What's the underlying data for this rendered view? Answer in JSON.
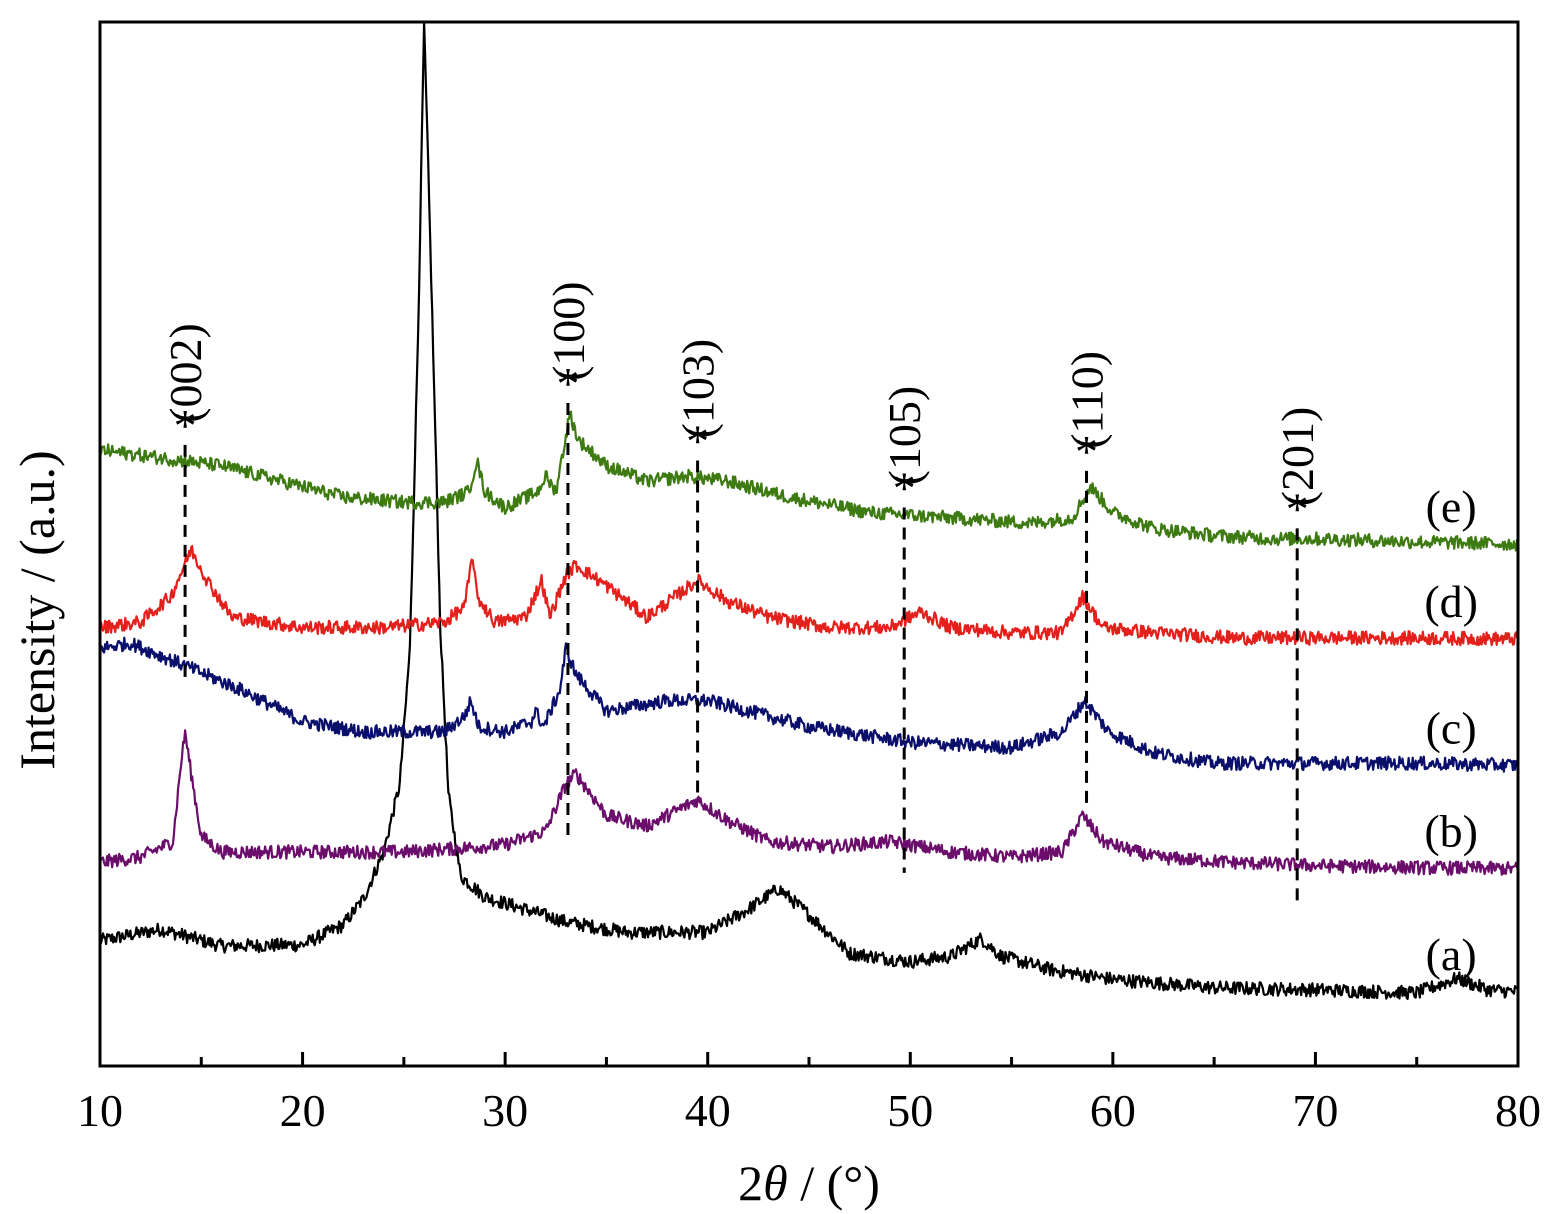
{
  "chart_data": {
    "type": "line",
    "xlabel_prefix": "2",
    "xlabel_theta": "θ",
    "xlabel_suffix": " / (°)",
    "ylabel": "Intensity / (a.u.)",
    "xlim": [
      10,
      80
    ],
    "ylim": [
      0,
      100
    ],
    "x_ticks": [
      "10",
      "20",
      "30",
      "40",
      "50",
      "60",
      "70",
      "80"
    ],
    "grid": false,
    "series": [
      {
        "name": "(a)",
        "color": "#000000",
        "points": [
          [
            10,
            12.0
          ],
          [
            13,
            13.1
          ],
          [
            16,
            11.5
          ],
          [
            20,
            11.6
          ],
          [
            22,
            13.5
          ],
          [
            23,
            16.0
          ],
          [
            24,
            20.5
          ],
          [
            24.8,
            27.0
          ],
          [
            25.3,
            40.0
          ],
          [
            25.7,
            70.0
          ],
          [
            26.0,
            100.0
          ],
          [
            26.4,
            72.0
          ],
          [
            26.8,
            42.0
          ],
          [
            27.2,
            26.0
          ],
          [
            27.8,
            18.2
          ],
          [
            29,
            16.2
          ],
          [
            31,
            15.0
          ],
          [
            33,
            13.8
          ],
          [
            36,
            12.8
          ],
          [
            40,
            12.8
          ],
          [
            42,
            15.0
          ],
          [
            43.5,
            17.0
          ],
          [
            45,
            14.5
          ],
          [
            47,
            10.8
          ],
          [
            50,
            10.0
          ],
          [
            52,
            10.5
          ],
          [
            53.5,
            12.2
          ],
          [
            54.5,
            10.5
          ],
          [
            57,
            9.2
          ],
          [
            60,
            8.3
          ],
          [
            65,
            7.5
          ],
          [
            70,
            7.3
          ],
          [
            75,
            7.0
          ],
          [
            77,
            8.4
          ],
          [
            78.5,
            7.3
          ],
          [
            80,
            7.1
          ]
        ]
      },
      {
        "name": "(b)",
        "color": "#6b0d6b",
        "points": [
          [
            10,
            19.5
          ],
          [
            12,
            20.0
          ],
          [
            13.6,
            21.5
          ],
          [
            14.0,
            29.0
          ],
          [
            14.2,
            32.0
          ],
          [
            14.5,
            28.0
          ],
          [
            15.0,
            22.0
          ],
          [
            16,
            20.5
          ],
          [
            20,
            20.5
          ],
          [
            25,
            20.5
          ],
          [
            28,
            20.9
          ],
          [
            30,
            21.2
          ],
          [
            32,
            22.5
          ],
          [
            33,
            27.0
          ],
          [
            33.5,
            28.0
          ],
          [
            35,
            24.0
          ],
          [
            37,
            23.0
          ],
          [
            39.5,
            25.5
          ],
          [
            41,
            23.5
          ],
          [
            43,
            21.5
          ],
          [
            46,
            21.0
          ],
          [
            49,
            21.5
          ],
          [
            52,
            20.5
          ],
          [
            55,
            20.0
          ],
          [
            57.5,
            20.5
          ],
          [
            58.5,
            24.0
          ],
          [
            59.5,
            21.5
          ],
          [
            62,
            20.0
          ],
          [
            66,
            19.5
          ],
          [
            70,
            19.2
          ],
          [
            75,
            19.0
          ],
          [
            80,
            18.9
          ]
        ]
      },
      {
        "name": "(c)",
        "color": "#0a0f6b",
        "points": [
          [
            10,
            40.0
          ],
          [
            11.5,
            40.5
          ],
          [
            14,
            38.5
          ],
          [
            17,
            36.0
          ],
          [
            20,
            33.0
          ],
          [
            23,
            32.0
          ],
          [
            25,
            32.0
          ],
          [
            27,
            32.0
          ],
          [
            28.0,
            33.5
          ],
          [
            28.3,
            35.0
          ],
          [
            28.7,
            32.5
          ],
          [
            30,
            32.0
          ],
          [
            31.3,
            33.0
          ],
          [
            31.5,
            34.0
          ],
          [
            31.9,
            32.5
          ],
          [
            32.7,
            36.0
          ],
          [
            33.0,
            40.0
          ],
          [
            33.5,
            37.5
          ],
          [
            35,
            34.0
          ],
          [
            38,
            35.0
          ],
          [
            40,
            35.0
          ],
          [
            42,
            34.0
          ],
          [
            45,
            32.5
          ],
          [
            50,
            31.0
          ],
          [
            55,
            30.5
          ],
          [
            57.5,
            32.0
          ],
          [
            58.6,
            35.0
          ],
          [
            59.8,
            32.0
          ],
          [
            62,
            30.0
          ],
          [
            65,
            29.0
          ],
          [
            68,
            29.0
          ],
          [
            70,
            29.0
          ],
          [
            75,
            29.0
          ],
          [
            80,
            28.8
          ]
        ]
      },
      {
        "name": "(d)",
        "color": "#e3201c",
        "points": [
          [
            10,
            42.0
          ],
          [
            12,
            42.5
          ],
          [
            13.5,
            45.0
          ],
          [
            14.5,
            49.5
          ],
          [
            15.3,
            46.5
          ],
          [
            16.5,
            43.0
          ],
          [
            20,
            42.0
          ],
          [
            24,
            42.0
          ],
          [
            27,
            42.5
          ],
          [
            28.0,
            44.0
          ],
          [
            28.4,
            49.0
          ],
          [
            28.6,
            45.0
          ],
          [
            29.5,
            42.5
          ],
          [
            31,
            43.0
          ],
          [
            31.8,
            46.5
          ],
          [
            32.2,
            43.0
          ],
          [
            33.0,
            47.0
          ],
          [
            33.5,
            48.0
          ],
          [
            35,
            46.0
          ],
          [
            37,
            43.0
          ],
          [
            39.5,
            46.5
          ],
          [
            41,
            44.5
          ],
          [
            43,
            43.0
          ],
          [
            46,
            42.0
          ],
          [
            49,
            42.0
          ],
          [
            50.5,
            43.5
          ],
          [
            52,
            42.0
          ],
          [
            55,
            41.5
          ],
          [
            57.5,
            41.5
          ],
          [
            58.5,
            45.0
          ],
          [
            59.5,
            42.0
          ],
          [
            62,
            41.5
          ],
          [
            66,
            41.0
          ],
          [
            70,
            41.0
          ],
          [
            75,
            41.0
          ],
          [
            80,
            40.9
          ]
        ]
      },
      {
        "name": "(e)",
        "color": "#3d7a12",
        "points": [
          [
            10,
            59.0
          ],
          [
            12,
            58.5
          ],
          [
            14,
            58.0
          ],
          [
            16,
            57.5
          ],
          [
            18,
            56.5
          ],
          [
            20,
            55.5
          ],
          [
            22,
            54.5
          ],
          [
            25,
            54.0
          ],
          [
            27,
            54.0
          ],
          [
            28.2,
            55.0
          ],
          [
            28.6,
            58.0
          ],
          [
            29,
            55.0
          ],
          [
            30,
            53.5
          ],
          [
            31.6,
            55.0
          ],
          [
            32.0,
            56.5
          ],
          [
            32.5,
            55.0
          ],
          [
            33.2,
            62.5
          ],
          [
            33.6,
            60.0
          ],
          [
            35,
            57.5
          ],
          [
            37,
            56.0
          ],
          [
            39,
            56.5
          ],
          [
            41,
            56.0
          ],
          [
            44,
            54.5
          ],
          [
            48,
            53.0
          ],
          [
            52,
            52.5
          ],
          [
            56,
            52.0
          ],
          [
            58,
            52.5
          ],
          [
            58.9,
            55.5
          ],
          [
            60,
            53.0
          ],
          [
            62,
            51.5
          ],
          [
            65,
            50.8
          ],
          [
            68,
            50.5
          ],
          [
            70,
            50.5
          ],
          [
            75,
            50.2
          ],
          [
            80,
            50.0
          ]
        ]
      }
    ],
    "peaks": [
      {
        "x": 14.2,
        "label": "(002)",
        "top_y": 59.5,
        "bottom_y": 37.0
      },
      {
        "x": 33.1,
        "label": "(100)",
        "top_y": 63.5,
        "bottom_y": 22.0
      },
      {
        "x": 39.5,
        "label": "(103)",
        "top_y": 58.0,
        "bottom_y": 26.0
      },
      {
        "x": 49.7,
        "label": "(105)",
        "top_y": 53.5,
        "bottom_y": 18.5
      },
      {
        "x": 58.7,
        "label": "(110)",
        "top_y": 57.0,
        "bottom_y": 25.0
      },
      {
        "x": 69.1,
        "label": "(201)",
        "top_y": 51.5,
        "bottom_y": 15.5
      }
    ],
    "peak_marker": "*"
  }
}
